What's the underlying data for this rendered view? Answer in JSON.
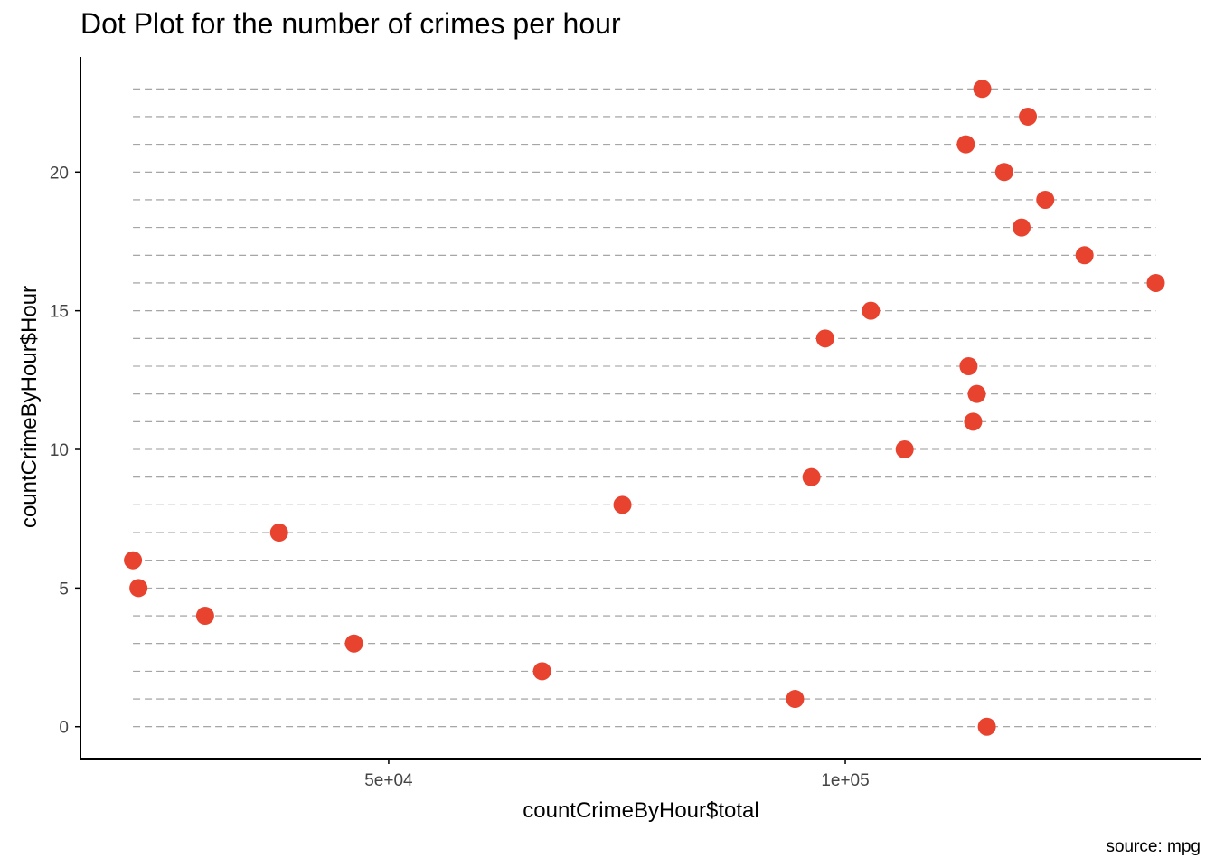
{
  "chart_data": {
    "type": "scatter",
    "title": "Dot Plot for the number of crimes per hour",
    "xlabel": "countCrimeByHour$total",
    "ylabel": "countCrimeByHour$Hour",
    "caption": "source: mpg",
    "x_ticks": [
      {
        "value": 50000,
        "label": "5e+04"
      },
      {
        "value": 100000,
        "label": "1e+05"
      }
    ],
    "y_ticks": [
      {
        "value": 0,
        "label": "0"
      },
      {
        "value": 5,
        "label": "5"
      },
      {
        "value": 10,
        "label": "10"
      },
      {
        "value": 15,
        "label": "15"
      },
      {
        "value": 20,
        "label": "20"
      }
    ],
    "xlim": [
      16250,
      139000
    ],
    "ylim": [
      -1.15,
      24.15
    ],
    "grid": "dashed horizontal line per hour",
    "point_color": "#E8432F",
    "line_color": "#999999",
    "points": [
      {
        "hour": 0,
        "total": 115500
      },
      {
        "hour": 1,
        "total": 94500
      },
      {
        "hour": 2,
        "total": 66800
      },
      {
        "hour": 3,
        "total": 46200
      },
      {
        "hour": 4,
        "total": 29900
      },
      {
        "hour": 5,
        "total": 22600
      },
      {
        "hour": 6,
        "total": 22000
      },
      {
        "hour": 7,
        "total": 38000
      },
      {
        "hour": 8,
        "total": 75600
      },
      {
        "hour": 9,
        "total": 96300
      },
      {
        "hour": 10,
        "total": 106500
      },
      {
        "hour": 11,
        "total": 114000
      },
      {
        "hour": 12,
        "total": 114400
      },
      {
        "hour": 13,
        "total": 113500
      },
      {
        "hour": 14,
        "total": 97800
      },
      {
        "hour": 15,
        "total": 102800
      },
      {
        "hour": 16,
        "total": 134000
      },
      {
        "hour": 17,
        "total": 126200
      },
      {
        "hour": 18,
        "total": 119300
      },
      {
        "hour": 19,
        "total": 121900
      },
      {
        "hour": 20,
        "total": 117400
      },
      {
        "hour": 21,
        "total": 113200
      },
      {
        "hour": 22,
        "total": 120000
      },
      {
        "hour": 23,
        "total": 115000
      }
    ]
  }
}
